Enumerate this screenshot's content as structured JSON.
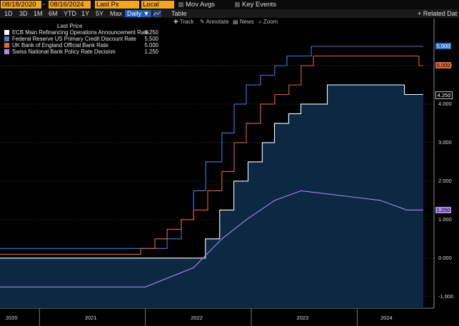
{
  "toolbar": {
    "start_date": "08/18/2020",
    "dash": "-",
    "end_date": "08/16/2024",
    "price_field": "Last Px",
    "currency": "Local CCY",
    "mov_avgs": "Mov Avgs",
    "key_events": "Key Events"
  },
  "ranges": [
    "1D",
    "3D",
    "1M",
    "6M",
    "YTD",
    "1Y",
    "5Y",
    "Max"
  ],
  "daily_label": "Daily ▼",
  "table_label": "Table",
  "related_label": "+ Related Dat",
  "tools": {
    "track": "Track",
    "annotate": "Annotate",
    "news": "News",
    "zoom": "Zoom"
  },
  "legend": {
    "title": "Last Price",
    "items": [
      {
        "name": "ECB Main Refinancing Operations Announcement Rate",
        "value": "4.250",
        "color": "#ffffff"
      },
      {
        "name": "Federal Reserve US Primary Credit Discount Rate",
        "value": "5.500",
        "color": "#3f7fd9"
      },
      {
        "name": "UK Bank of England Official Bank Rate",
        "value": "5.000",
        "color": "#e0663a"
      },
      {
        "name": "Swiss National Bank Policy Rate Decision",
        "value": "1.250",
        "color": "#a98ae8"
      }
    ]
  },
  "tags": [
    {
      "value": "5.500",
      "bg": "#2f6fd0",
      "fg": "#ffffff"
    },
    {
      "value": "5.000",
      "bg": "#e0663a",
      "fg": "#000000"
    },
    {
      "value": "4.250",
      "bg": "#000000",
      "fg": "#ffffff"
    },
    {
      "value": "1.250",
      "bg": "#a98ae8",
      "fg": "#000000"
    }
  ],
  "chart_data": {
    "type": "line",
    "ylim": [
      -1.3,
      6.0
    ],
    "y_ticks": [
      "5.000",
      "4.000",
      "3.000",
      "2.000",
      "1.000",
      "0.000",
      "-1.000"
    ],
    "x_labels": [
      "2020",
      "2021",
      "2022",
      "2023",
      "2024"
    ],
    "x_range": [
      "2020-08-18",
      "2024-08-16"
    ],
    "series": [
      {
        "name": "Federal Reserve US Primary Credit Discount Rate",
        "color": "#3f7fd9",
        "points": [
          [
            "2020-08-18",
            0.25
          ],
          [
            "2022-03-17",
            0.5
          ],
          [
            "2022-05-05",
            1.0
          ],
          [
            "2022-06-16",
            1.75
          ],
          [
            "2022-07-28",
            2.5
          ],
          [
            "2022-09-22",
            3.25
          ],
          [
            "2022-11-03",
            4.0
          ],
          [
            "2022-12-15",
            4.5
          ],
          [
            "2023-02-02",
            4.75
          ],
          [
            "2023-03-23",
            5.0
          ],
          [
            "2023-05-04",
            5.25
          ],
          [
            "2023-07-27",
            5.5
          ],
          [
            "2024-08-16",
            5.5
          ]
        ]
      },
      {
        "name": "UK Bank of England Official Bank Rate",
        "color": "#e0663a",
        "points": [
          [
            "2020-08-18",
            0.1
          ],
          [
            "2021-12-16",
            0.25
          ],
          [
            "2022-02-03",
            0.5
          ],
          [
            "2022-03-17",
            0.75
          ],
          [
            "2022-05-05",
            1.0
          ],
          [
            "2022-06-16",
            1.25
          ],
          [
            "2022-08-04",
            1.75
          ],
          [
            "2022-09-22",
            2.25
          ],
          [
            "2022-11-03",
            3.0
          ],
          [
            "2022-12-15",
            3.5
          ],
          [
            "2023-02-02",
            4.0
          ],
          [
            "2023-03-23",
            4.25
          ],
          [
            "2023-05-11",
            4.5
          ],
          [
            "2023-06-22",
            5.0
          ],
          [
            "2023-08-03",
            5.25
          ],
          [
            "2024-08-01",
            5.0
          ],
          [
            "2024-08-16",
            5.0
          ]
        ]
      },
      {
        "name": "ECB Main Refinancing Operations Announcement Rate",
        "color": "#ffffff",
        "fill": true,
        "points": [
          [
            "2020-08-18",
            0.0
          ],
          [
            "2022-07-27",
            0.5
          ],
          [
            "2022-09-14",
            1.25
          ],
          [
            "2022-11-02",
            2.0
          ],
          [
            "2022-12-21",
            2.5
          ],
          [
            "2023-02-08",
            3.0
          ],
          [
            "2023-03-22",
            3.5
          ],
          [
            "2023-05-10",
            3.75
          ],
          [
            "2023-06-21",
            4.0
          ],
          [
            "2023-09-20",
            4.5
          ],
          [
            "2024-06-12",
            4.25
          ],
          [
            "2024-08-16",
            4.25
          ]
        ]
      },
      {
        "name": "Swiss National Bank Policy Rate Decision",
        "color": "#a98ae8",
        "interpolate": true,
        "points": [
          [
            "2020-08-18",
            -0.75
          ],
          [
            "2022-01-01",
            -0.75
          ],
          [
            "2022-06-16",
            -0.25
          ],
          [
            "2022-09-22",
            0.5
          ],
          [
            "2022-12-15",
            1.0
          ],
          [
            "2023-03-23",
            1.5
          ],
          [
            "2023-06-22",
            1.75
          ],
          [
            "2024-03-21",
            1.5
          ],
          [
            "2024-06-20",
            1.25
          ],
          [
            "2024-08-16",
            1.25
          ]
        ]
      }
    ]
  }
}
